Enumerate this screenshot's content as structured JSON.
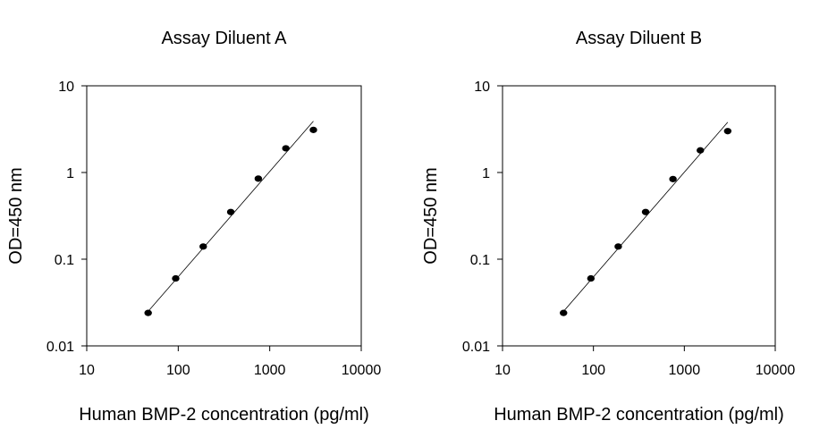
{
  "chart_data": [
    {
      "type": "scatter",
      "title": "Assay Diluent A",
      "xlabel": "Human BMP-2 concentration (pg/ml)",
      "ylabel": "OD=450 nm",
      "x_scale": "log",
      "y_scale": "log",
      "xlim": [
        10,
        10000
      ],
      "ylim": [
        0.01,
        10
      ],
      "x_ticks": [
        "10",
        "100",
        "1000",
        "10000"
      ],
      "y_ticks": [
        "0.01",
        "0.1",
        "1",
        "10"
      ],
      "grid": false,
      "series": [
        {
          "x": [
            46.9,
            93.8,
            187.5,
            375,
            750,
            1500,
            3000
          ],
          "y": [
            0.024,
            0.06,
            0.14,
            0.35,
            0.85,
            1.9,
            3.1
          ]
        }
      ],
      "fit_line": {
        "x": [
          46.9,
          3000
        ],
        "y": [
          0.025,
          3.9
        ]
      }
    },
    {
      "type": "scatter",
      "title": "Assay Diluent B",
      "xlabel": "Human BMP-2 concentration (pg/ml)",
      "ylabel": "OD=450 nm",
      "x_scale": "log",
      "y_scale": "log",
      "xlim": [
        10,
        10000
      ],
      "ylim": [
        0.01,
        10
      ],
      "x_ticks": [
        "10",
        "100",
        "1000",
        "10000"
      ],
      "y_ticks": [
        "0.01",
        "0.1",
        "1",
        "10"
      ],
      "grid": false,
      "series": [
        {
          "x": [
            46.9,
            93.8,
            187.5,
            375,
            750,
            1500,
            3000
          ],
          "y": [
            0.024,
            0.06,
            0.14,
            0.35,
            0.84,
            1.8,
            3.0
          ]
        }
      ],
      "fit_line": {
        "x": [
          46.9,
          3000
        ],
        "y": [
          0.025,
          3.8
        ]
      }
    }
  ]
}
